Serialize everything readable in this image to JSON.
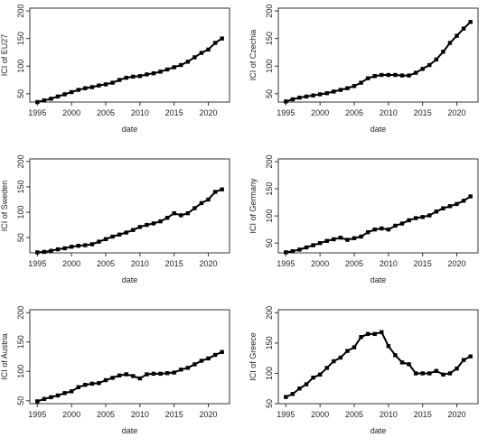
{
  "chart_data": [
    {
      "type": "line",
      "ylabel": "ICI of EU27",
      "xlabel": "date",
      "x": [
        1995,
        1996,
        1997,
        1998,
        1999,
        2000,
        2001,
        2002,
        2003,
        2004,
        2005,
        2006,
        2007,
        2008,
        2009,
        2010,
        2011,
        2012,
        2013,
        2014,
        2015,
        2016,
        2017,
        2018,
        2019,
        2020,
        2021,
        2022
      ],
      "series": [
        {
          "values": [
            35,
            38,
            41,
            45,
            49,
            53,
            57,
            60,
            62,
            65,
            67,
            70,
            75,
            79,
            81,
            82,
            85,
            87,
            90,
            94,
            98,
            102,
            108,
            116,
            124,
            130,
            142,
            150
          ]
        }
      ],
      "xticks": [
        "1995",
        "2000",
        "2005",
        "2010",
        "2015",
        "2020"
      ],
      "yticks": [
        "50",
        "100",
        "150",
        "200"
      ],
      "xlim": [
        1995,
        2022
      ],
      "ylim": [
        35,
        200
      ]
    },
    {
      "type": "line",
      "ylabel": "ICI of Czechia",
      "xlabel": "date",
      "x": [
        1995,
        1996,
        1997,
        1998,
        1999,
        2000,
        2001,
        2002,
        2003,
        2004,
        2005,
        2006,
        2007,
        2008,
        2009,
        2010,
        2011,
        2012,
        2013,
        2014,
        2015,
        2016,
        2017,
        2018,
        2019,
        2020,
        2021,
        2022
      ],
      "series": [
        {
          "values": [
            36,
            40,
            43,
            45,
            47,
            49,
            51,
            54,
            57,
            60,
            64,
            70,
            78,
            82,
            84,
            84,
            84,
            83,
            83,
            88,
            95,
            102,
            112,
            126,
            142,
            155,
            168,
            180
          ]
        }
      ],
      "xticks": [
        "1995",
        "2000",
        "2005",
        "2010",
        "2015",
        "2020"
      ],
      "yticks": [
        "50",
        "100",
        "150",
        "200"
      ],
      "xlim": [
        1995,
        2022
      ],
      "ylim": [
        35,
        200
      ]
    },
    {
      "type": "line",
      "ylabel": "ICI of Sweden",
      "xlabel": "date",
      "x": [
        1995,
        1996,
        1997,
        1998,
        1999,
        2000,
        2001,
        2002,
        2003,
        2004,
        2005,
        2006,
        2007,
        2008,
        2009,
        2010,
        2011,
        2012,
        2013,
        2014,
        2015,
        2016,
        2017,
        2018,
        2019,
        2020,
        2021,
        2022
      ],
      "series": [
        {
          "values": [
            21,
            22,
            24,
            27,
            29,
            32,
            34,
            35,
            37,
            42,
            47,
            52,
            56,
            60,
            65,
            71,
            75,
            78,
            82,
            89,
            98,
            94,
            98,
            108,
            118,
            125,
            140,
            145
          ]
        }
      ],
      "xticks": [
        "1995",
        "2000",
        "2005",
        "2010",
        "2015",
        "2020"
      ],
      "yticks": [
        "50",
        "100",
        "150",
        "200"
      ],
      "xlim": [
        1995,
        2022
      ],
      "ylim": [
        20,
        200
      ]
    },
    {
      "type": "line",
      "ylabel": "ICI of Germany",
      "xlabel": "date",
      "x": [
        1995,
        1996,
        1997,
        1998,
        1999,
        2000,
        2001,
        2002,
        2003,
        2004,
        2005,
        2006,
        2007,
        2008,
        2009,
        2010,
        2011,
        2012,
        2013,
        2014,
        2015,
        2016,
        2017,
        2018,
        2019,
        2020,
        2021,
        2022
      ],
      "series": [
        {
          "values": [
            33,
            35,
            38,
            42,
            46,
            50,
            54,
            57,
            60,
            56,
            59,
            62,
            70,
            75,
            77,
            75,
            82,
            86,
            92,
            96,
            98,
            101,
            108,
            114,
            118,
            122,
            128,
            136
          ]
        }
      ],
      "xticks": [
        "1995",
        "2000",
        "2005",
        "2010",
        "2015",
        "2020"
      ],
      "yticks": [
        "50",
        "100",
        "150",
        "200"
      ],
      "xlim": [
        1995,
        2022
      ],
      "ylim": [
        32,
        200
      ]
    },
    {
      "type": "line",
      "ylabel": "ICI of Austria",
      "xlabel": "date",
      "x": [
        1995,
        1996,
        1997,
        1998,
        1999,
        2000,
        2001,
        2002,
        2003,
        2004,
        2005,
        2006,
        2007,
        2008,
        2009,
        2010,
        2011,
        2012,
        2013,
        2014,
        2015,
        2016,
        2017,
        2018,
        2019,
        2020,
        2021,
        2022
      ],
      "series": [
        {
          "values": [
            49,
            53,
            56,
            59,
            63,
            66,
            73,
            77,
            79,
            80,
            85,
            89,
            93,
            95,
            92,
            88,
            95,
            96,
            96,
            97,
            98,
            103,
            106,
            112,
            118,
            122,
            128,
            133
          ]
        }
      ],
      "xticks": [
        "1995",
        "2000",
        "2005",
        "2010",
        "2015",
        "2020"
      ],
      "yticks": [
        "50",
        "100",
        "150",
        "200"
      ],
      "xlim": [
        1995,
        2022
      ],
      "ylim": [
        45,
        200
      ]
    },
    {
      "type": "line",
      "ylabel": "ICI of Greece",
      "xlabel": "date",
      "x": [
        1995,
        1996,
        1997,
        1998,
        1999,
        2000,
        2001,
        2002,
        2003,
        2004,
        2005,
        2006,
        2007,
        2008,
        2009,
        2010,
        2011,
        2012,
        2013,
        2014,
        2015,
        2016,
        2017,
        2018,
        2019,
        2020,
        2021,
        2022
      ],
      "series": [
        {
          "values": [
            61,
            66,
            75,
            82,
            93,
            98,
            109,
            120,
            126,
            137,
            143,
            160,
            165,
            165,
            168,
            145,
            130,
            118,
            115,
            100,
            100,
            100,
            104,
            98,
            100,
            108,
            122,
            128
          ]
        }
      ],
      "xticks": [
        "1995",
        "2000",
        "2005",
        "2010",
        "2015",
        "2020"
      ],
      "yticks": [
        "50",
        "100",
        "150",
        "200"
      ],
      "xlim": [
        1995,
        2022
      ],
      "ylim": [
        50,
        200
      ]
    }
  ]
}
